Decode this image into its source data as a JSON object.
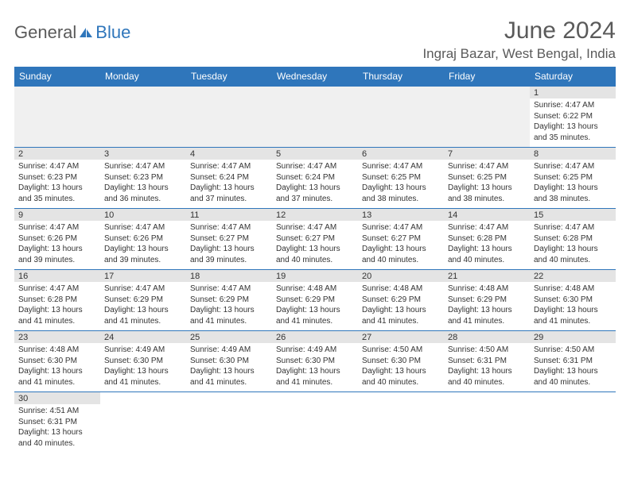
{
  "logo": {
    "part1": "General",
    "part2": "Blue"
  },
  "title": "June 2024",
  "location": "Ingraj Bazar, West Bengal, India",
  "colors": {
    "header_bg": "#2f76bb",
    "header_text": "#ffffff",
    "daynum_bg": "#e4e4e4",
    "empty_bg": "#f0f0f0",
    "border": "#2f76bb"
  },
  "weekdays": [
    "Sunday",
    "Monday",
    "Tuesday",
    "Wednesday",
    "Thursday",
    "Friday",
    "Saturday"
  ],
  "weeks": [
    [
      null,
      null,
      null,
      null,
      null,
      null,
      {
        "n": "1",
        "sr": "Sunrise: 4:47 AM",
        "ss": "Sunset: 6:22 PM",
        "dl1": "Daylight: 13 hours",
        "dl2": "and 35 minutes."
      }
    ],
    [
      {
        "n": "2",
        "sr": "Sunrise: 4:47 AM",
        "ss": "Sunset: 6:23 PM",
        "dl1": "Daylight: 13 hours",
        "dl2": "and 35 minutes."
      },
      {
        "n": "3",
        "sr": "Sunrise: 4:47 AM",
        "ss": "Sunset: 6:23 PM",
        "dl1": "Daylight: 13 hours",
        "dl2": "and 36 minutes."
      },
      {
        "n": "4",
        "sr": "Sunrise: 4:47 AM",
        "ss": "Sunset: 6:24 PM",
        "dl1": "Daylight: 13 hours",
        "dl2": "and 37 minutes."
      },
      {
        "n": "5",
        "sr": "Sunrise: 4:47 AM",
        "ss": "Sunset: 6:24 PM",
        "dl1": "Daylight: 13 hours",
        "dl2": "and 37 minutes."
      },
      {
        "n": "6",
        "sr": "Sunrise: 4:47 AM",
        "ss": "Sunset: 6:25 PM",
        "dl1": "Daylight: 13 hours",
        "dl2": "and 38 minutes."
      },
      {
        "n": "7",
        "sr": "Sunrise: 4:47 AM",
        "ss": "Sunset: 6:25 PM",
        "dl1": "Daylight: 13 hours",
        "dl2": "and 38 minutes."
      },
      {
        "n": "8",
        "sr": "Sunrise: 4:47 AM",
        "ss": "Sunset: 6:25 PM",
        "dl1": "Daylight: 13 hours",
        "dl2": "and 38 minutes."
      }
    ],
    [
      {
        "n": "9",
        "sr": "Sunrise: 4:47 AM",
        "ss": "Sunset: 6:26 PM",
        "dl1": "Daylight: 13 hours",
        "dl2": "and 39 minutes."
      },
      {
        "n": "10",
        "sr": "Sunrise: 4:47 AM",
        "ss": "Sunset: 6:26 PM",
        "dl1": "Daylight: 13 hours",
        "dl2": "and 39 minutes."
      },
      {
        "n": "11",
        "sr": "Sunrise: 4:47 AM",
        "ss": "Sunset: 6:27 PM",
        "dl1": "Daylight: 13 hours",
        "dl2": "and 39 minutes."
      },
      {
        "n": "12",
        "sr": "Sunrise: 4:47 AM",
        "ss": "Sunset: 6:27 PM",
        "dl1": "Daylight: 13 hours",
        "dl2": "and 40 minutes."
      },
      {
        "n": "13",
        "sr": "Sunrise: 4:47 AM",
        "ss": "Sunset: 6:27 PM",
        "dl1": "Daylight: 13 hours",
        "dl2": "and 40 minutes."
      },
      {
        "n": "14",
        "sr": "Sunrise: 4:47 AM",
        "ss": "Sunset: 6:28 PM",
        "dl1": "Daylight: 13 hours",
        "dl2": "and 40 minutes."
      },
      {
        "n": "15",
        "sr": "Sunrise: 4:47 AM",
        "ss": "Sunset: 6:28 PM",
        "dl1": "Daylight: 13 hours",
        "dl2": "and 40 minutes."
      }
    ],
    [
      {
        "n": "16",
        "sr": "Sunrise: 4:47 AM",
        "ss": "Sunset: 6:28 PM",
        "dl1": "Daylight: 13 hours",
        "dl2": "and 41 minutes."
      },
      {
        "n": "17",
        "sr": "Sunrise: 4:47 AM",
        "ss": "Sunset: 6:29 PM",
        "dl1": "Daylight: 13 hours",
        "dl2": "and 41 minutes."
      },
      {
        "n": "18",
        "sr": "Sunrise: 4:47 AM",
        "ss": "Sunset: 6:29 PM",
        "dl1": "Daylight: 13 hours",
        "dl2": "and 41 minutes."
      },
      {
        "n": "19",
        "sr": "Sunrise: 4:48 AM",
        "ss": "Sunset: 6:29 PM",
        "dl1": "Daylight: 13 hours",
        "dl2": "and 41 minutes."
      },
      {
        "n": "20",
        "sr": "Sunrise: 4:48 AM",
        "ss": "Sunset: 6:29 PM",
        "dl1": "Daylight: 13 hours",
        "dl2": "and 41 minutes."
      },
      {
        "n": "21",
        "sr": "Sunrise: 4:48 AM",
        "ss": "Sunset: 6:29 PM",
        "dl1": "Daylight: 13 hours",
        "dl2": "and 41 minutes."
      },
      {
        "n": "22",
        "sr": "Sunrise: 4:48 AM",
        "ss": "Sunset: 6:30 PM",
        "dl1": "Daylight: 13 hours",
        "dl2": "and 41 minutes."
      }
    ],
    [
      {
        "n": "23",
        "sr": "Sunrise: 4:48 AM",
        "ss": "Sunset: 6:30 PM",
        "dl1": "Daylight: 13 hours",
        "dl2": "and 41 minutes."
      },
      {
        "n": "24",
        "sr": "Sunrise: 4:49 AM",
        "ss": "Sunset: 6:30 PM",
        "dl1": "Daylight: 13 hours",
        "dl2": "and 41 minutes."
      },
      {
        "n": "25",
        "sr": "Sunrise: 4:49 AM",
        "ss": "Sunset: 6:30 PM",
        "dl1": "Daylight: 13 hours",
        "dl2": "and 41 minutes."
      },
      {
        "n": "26",
        "sr": "Sunrise: 4:49 AM",
        "ss": "Sunset: 6:30 PM",
        "dl1": "Daylight: 13 hours",
        "dl2": "and 41 minutes."
      },
      {
        "n": "27",
        "sr": "Sunrise: 4:50 AM",
        "ss": "Sunset: 6:30 PM",
        "dl1": "Daylight: 13 hours",
        "dl2": "and 40 minutes."
      },
      {
        "n": "28",
        "sr": "Sunrise: 4:50 AM",
        "ss": "Sunset: 6:31 PM",
        "dl1": "Daylight: 13 hours",
        "dl2": "and 40 minutes."
      },
      {
        "n": "29",
        "sr": "Sunrise: 4:50 AM",
        "ss": "Sunset: 6:31 PM",
        "dl1": "Daylight: 13 hours",
        "dl2": "and 40 minutes."
      }
    ],
    [
      {
        "n": "30",
        "sr": "Sunrise: 4:51 AM",
        "ss": "Sunset: 6:31 PM",
        "dl1": "Daylight: 13 hours",
        "dl2": "and 40 minutes."
      },
      null,
      null,
      null,
      null,
      null,
      null
    ]
  ]
}
